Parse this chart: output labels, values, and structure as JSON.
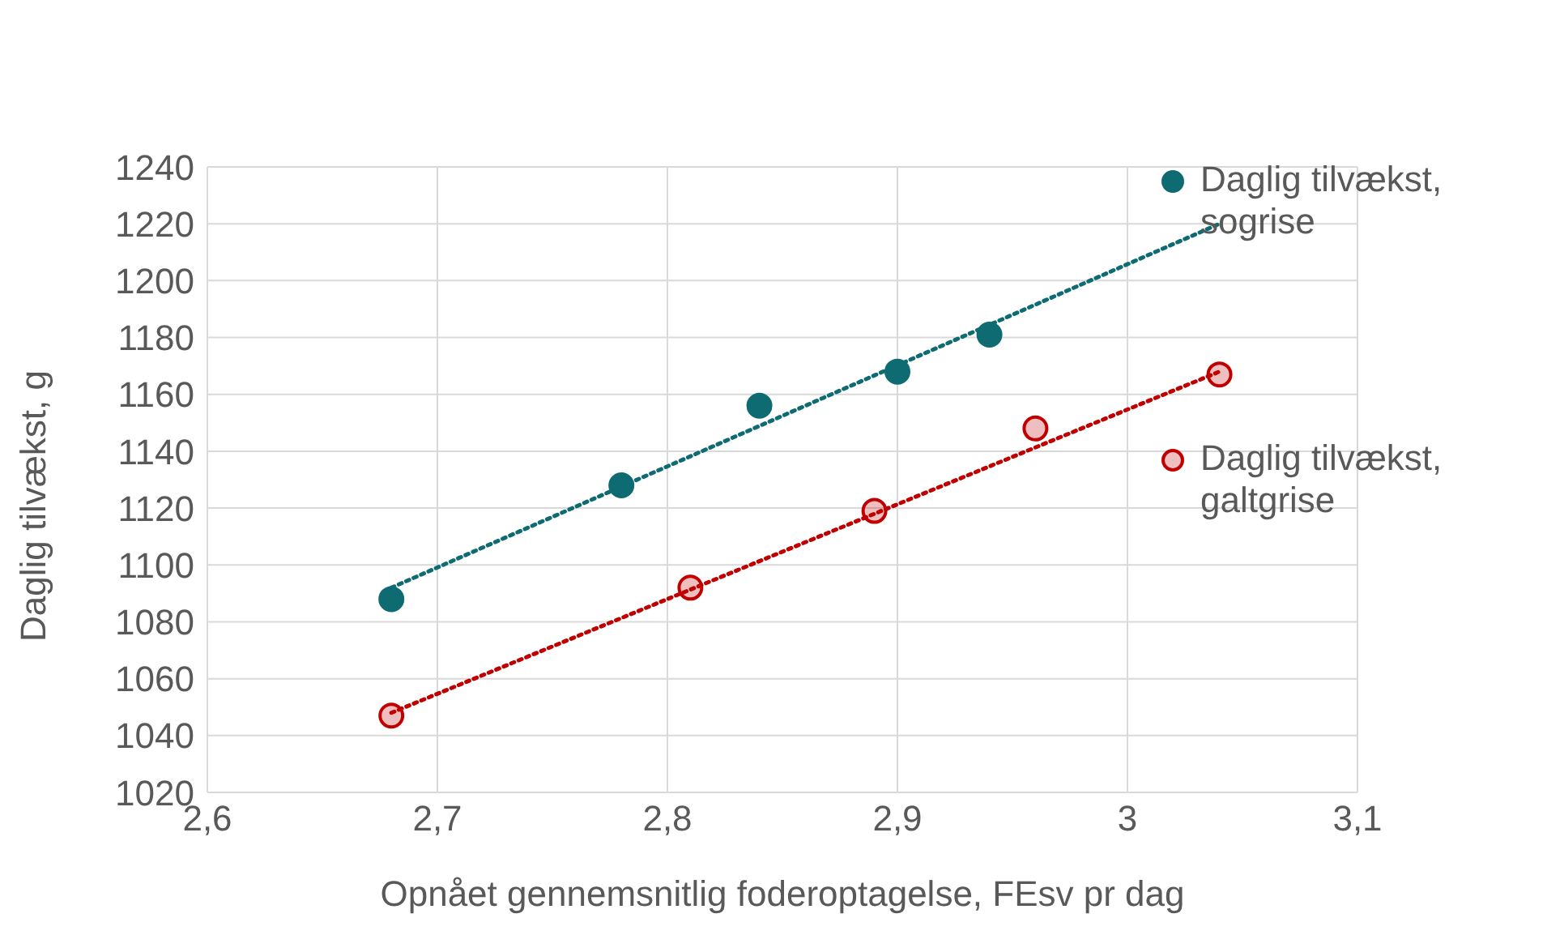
{
  "chart_data": {
    "type": "scatter",
    "xlabel": "Opnået gennemsnitlig foderoptagelse, FEsv pr dag",
    "ylabel": "Daglig tilvækst, g",
    "xlim": [
      2.6,
      3.1
    ],
    "xticks": [
      {
        "value": 2.6,
        "label": "2,6"
      },
      {
        "value": 2.7,
        "label": "2,7"
      },
      {
        "value": 2.8,
        "label": "2,8"
      },
      {
        "value": 2.9,
        "label": "2,9"
      },
      {
        "value": 3,
        "label": "3"
      },
      {
        "value": 3.1,
        "label": "3,1"
      }
    ],
    "ylim": [
      1020,
      1240
    ],
    "yticks": [
      1020,
      1040,
      1060,
      1080,
      1100,
      1120,
      1140,
      1160,
      1180,
      1200,
      1220,
      1240
    ],
    "grid": true,
    "legend": "right",
    "marker": "circle",
    "line_style": "dotted",
    "series": [
      {
        "name": "Daglig tilvækst, sogrise",
        "color": "#0f6b72",
        "x": [
          2.68,
          2.78,
          2.84,
          2.9,
          2.94
        ],
        "values": [
          1088,
          1128,
          1156,
          1168,
          1181
        ]
      },
      {
        "name": "Daglig tilvækst, galtgrise",
        "color": "#c00000",
        "x": [
          2.68,
          2.81,
          2.89,
          2.96,
          3.04
        ],
        "values": [
          1047,
          1092,
          1119,
          1148,
          1167
        ]
      },
      {
        "type": "line",
        "marker": "none",
        "color": "#0f6b72",
        "x": [
          2.68,
          3.04
        ],
        "values": [
          1092,
          1220
        ]
      },
      {
        "type": "line",
        "marker": "none",
        "color": "#c00000",
        "x": [
          2.68,
          3.04
        ],
        "values": [
          1048,
          1168
        ]
      }
    ]
  }
}
